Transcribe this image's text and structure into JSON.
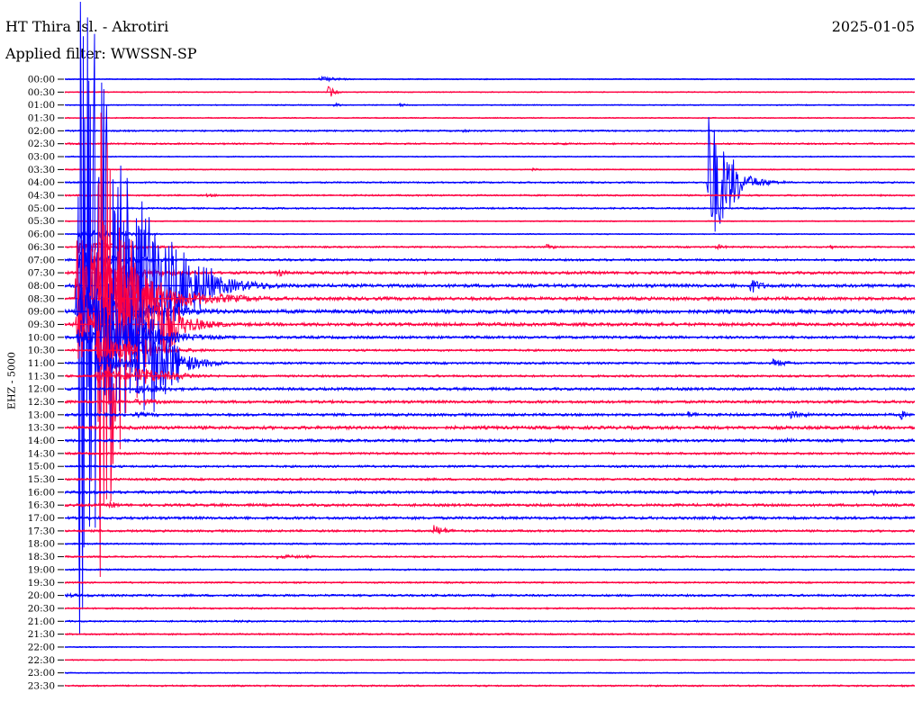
{
  "header": {
    "station": "HT Thira Isl. - Akrotiri",
    "date": "2025-01-05",
    "filter": "Applied filter: WWSSN-SP",
    "channel": "EHZ - 5000"
  },
  "chart_data": {
    "type": "line",
    "title": "HT Thira Isl. - Akrotiri",
    "subtitle": "Applied filter: WWSSN-SP",
    "ylabel": "EHZ - 5000",
    "row_labels": [
      "00:00",
      "00:30",
      "01:00",
      "01:30",
      "02:00",
      "02:30",
      "03:00",
      "03:30",
      "04:00",
      "04:30",
      "05:00",
      "05:30",
      "06:00",
      "06:30",
      "07:00",
      "07:30",
      "08:00",
      "08:30",
      "09:00",
      "09:30",
      "10:00",
      "10:30",
      "11:00",
      "11:30",
      "12:00",
      "12:30",
      "13:00",
      "13:30",
      "14:00",
      "14:30",
      "15:00",
      "15:30",
      "16:00",
      "16:30",
      "17:00",
      "17:30",
      "18:00",
      "18:30",
      "19:00",
      "19:30",
      "20:00",
      "20:30",
      "21:00",
      "21:30",
      "22:00",
      "22:30",
      "23:00",
      "23:30"
    ],
    "row_colors": [
      "#0000ff",
      "#ff0040"
    ],
    "x_range_minutes": [
      0,
      30
    ],
    "grid": false,
    "noise_level": [
      1,
      1,
      1,
      1,
      1.5,
      1.5,
      1,
      1,
      1.5,
      1.5,
      1.5,
      1,
      1,
      1.5,
      2,
      2.5,
      3,
      3,
      3.5,
      3,
      2.5,
      2,
      2,
      2,
      2.5,
      2.5,
      2.5,
      3,
      2.5,
      2,
      2,
      2,
      2.5,
      2.5,
      2.5,
      2,
      1.5,
      1.5,
      1.5,
      1.5,
      2,
      1.5,
      1.5,
      1.5,
      1,
      1,
      1,
      1.5
    ],
    "events": [
      {
        "row": 0,
        "minute": 9.0,
        "amp": 6,
        "dur": 2.0
      },
      {
        "row": 1,
        "minute": 9.3,
        "amp": 14,
        "dur": 0.6
      },
      {
        "row": 2,
        "minute": 9.5,
        "amp": 4,
        "dur": 1.0
      },
      {
        "row": 2,
        "minute": 11.8,
        "amp": 4,
        "dur": 0.8
      },
      {
        "row": 4,
        "minute": 14.0,
        "amp": 3,
        "dur": 1.5
      },
      {
        "row": 5,
        "minute": 17.5,
        "amp": 3,
        "dur": 1.5
      },
      {
        "row": 7,
        "minute": 16.5,
        "amp": 3,
        "dur": 1.0
      },
      {
        "row": 8,
        "minute": 22.7,
        "amp": 85,
        "dur": 2.2
      },
      {
        "row": 9,
        "minute": 5.0,
        "amp": 3,
        "dur": 3.0
      },
      {
        "row": 13,
        "minute": 17.0,
        "amp": 5,
        "dur": 1.5
      },
      {
        "row": 13,
        "minute": 23.0,
        "amp": 6,
        "dur": 1.0
      },
      {
        "row": 13,
        "minute": 27.0,
        "amp": 4,
        "dur": 1.0
      },
      {
        "row": 15,
        "minute": 7.5,
        "amp": 9,
        "dur": 1.0
      },
      {
        "row": 16,
        "minute": 24.2,
        "amp": 16,
        "dur": 1.2
      },
      {
        "row": 18,
        "minute": 22.5,
        "amp": 4,
        "dur": 2.0
      },
      {
        "row": 19,
        "minute": 0.3,
        "amp": 5,
        "dur": 8.0
      },
      {
        "row": 22,
        "minute": 25.0,
        "amp": 8,
        "dur": 2.0
      },
      {
        "row": 26,
        "minute": 22.0,
        "amp": 7,
        "dur": 1.5
      },
      {
        "row": 26,
        "minute": 25.5,
        "amp": 8,
        "dur": 2.5
      },
      {
        "row": 26,
        "minute": 29.5,
        "amp": 12,
        "dur": 0.5
      },
      {
        "row": 28,
        "minute": 25.5,
        "amp": 5,
        "dur": 1.0
      },
      {
        "row": 32,
        "minute": 4.0,
        "amp": 4,
        "dur": 2.0
      },
      {
        "row": 32,
        "minute": 28.5,
        "amp": 5,
        "dur": 1.5
      },
      {
        "row": 33,
        "minute": 1.6,
        "amp": 8,
        "dur": 1.0
      },
      {
        "row": 34,
        "minute": 17.0,
        "amp": 3,
        "dur": 2.0
      },
      {
        "row": 35,
        "minute": 13.0,
        "amp": 12,
        "dur": 1.5
      },
      {
        "row": 37,
        "minute": 7.5,
        "amp": 4,
        "dur": 5.0
      },
      {
        "row": 40,
        "minute": 0.0,
        "amp": 4,
        "dur": 5.0
      },
      {
        "row": 42,
        "minute": 6.0,
        "amp": 3,
        "dur": 3.0
      }
    ],
    "large_quakes": [
      {
        "row": 16,
        "minute": 0.5,
        "amp": 400,
        "dur": 4.5
      },
      {
        "row": 19,
        "minute": 1.2,
        "amp": 300,
        "dur": 3.0
      },
      {
        "row": 22,
        "minute": 2.6,
        "amp": 110,
        "dur": 2.5
      }
    ]
  }
}
